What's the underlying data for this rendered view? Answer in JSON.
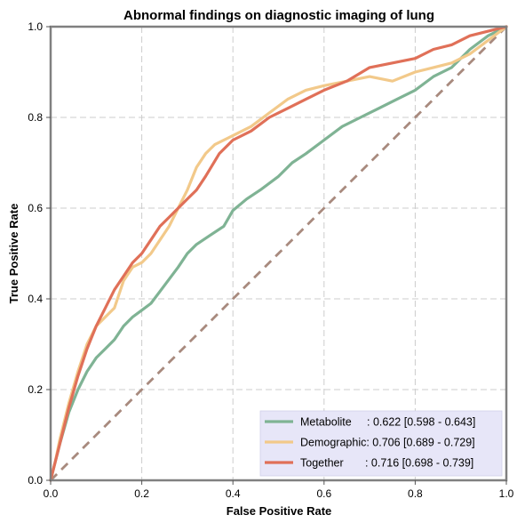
{
  "chart_data": {
    "type": "line",
    "title": "Abnormal findings on diagnostic imaging of lung",
    "xlabel": "False Positive Rate",
    "ylabel": "True Positive Rate",
    "xlim": [
      0,
      1
    ],
    "ylim": [
      0,
      1
    ],
    "grid": true,
    "legend_position": "bottom-right",
    "x_ticks": [
      "0.0",
      "0.2",
      "0.4",
      "0.6",
      "0.8",
      "1.0"
    ],
    "y_ticks": [
      "0.0",
      "0.2",
      "0.4",
      "0.6",
      "0.8",
      "1.0"
    ],
    "series": [
      {
        "name": "Metabolite",
        "legend_label": "Metabolite     : 0.622 [0.598 - 0.643]",
        "color": "#7fb394",
        "x": [
          0.0,
          0.01,
          0.02,
          0.04,
          0.06,
          0.08,
          0.1,
          0.12,
          0.14,
          0.16,
          0.18,
          0.2,
          0.22,
          0.25,
          0.28,
          0.3,
          0.32,
          0.35,
          0.38,
          0.4,
          0.43,
          0.46,
          0.5,
          0.53,
          0.56,
          0.6,
          0.64,
          0.68,
          0.72,
          0.76,
          0.8,
          0.84,
          0.88,
          0.92,
          0.96,
          1.0
        ],
        "y": [
          0.0,
          0.04,
          0.08,
          0.15,
          0.2,
          0.24,
          0.27,
          0.29,
          0.31,
          0.34,
          0.36,
          0.375,
          0.39,
          0.43,
          0.47,
          0.5,
          0.52,
          0.54,
          0.56,
          0.595,
          0.62,
          0.64,
          0.67,
          0.7,
          0.72,
          0.75,
          0.78,
          0.8,
          0.82,
          0.84,
          0.86,
          0.89,
          0.91,
          0.95,
          0.98,
          1.0
        ]
      },
      {
        "name": "Demographic",
        "legend_label": "Demographic: 0.706 [0.689 - 0.729]",
        "color": "#f2c98a",
        "x": [
          0.0,
          0.01,
          0.02,
          0.04,
          0.06,
          0.08,
          0.1,
          0.12,
          0.14,
          0.16,
          0.18,
          0.2,
          0.22,
          0.24,
          0.26,
          0.28,
          0.3,
          0.32,
          0.34,
          0.36,
          0.4,
          0.44,
          0.48,
          0.52,
          0.56,
          0.6,
          0.65,
          0.7,
          0.75,
          0.8,
          0.84,
          0.88,
          0.92,
          0.96,
          1.0
        ],
        "y": [
          0.0,
          0.04,
          0.09,
          0.17,
          0.24,
          0.3,
          0.34,
          0.36,
          0.38,
          0.44,
          0.47,
          0.48,
          0.5,
          0.53,
          0.56,
          0.6,
          0.64,
          0.69,
          0.72,
          0.74,
          0.76,
          0.78,
          0.81,
          0.84,
          0.86,
          0.87,
          0.88,
          0.89,
          0.88,
          0.9,
          0.91,
          0.92,
          0.94,
          0.97,
          1.0
        ]
      },
      {
        "name": "Together",
        "legend_label": "Together       : 0.716 [0.698 - 0.739]",
        "color": "#e07058",
        "x": [
          0.0,
          0.01,
          0.02,
          0.04,
          0.06,
          0.08,
          0.1,
          0.12,
          0.14,
          0.16,
          0.18,
          0.2,
          0.22,
          0.24,
          0.26,
          0.28,
          0.3,
          0.32,
          0.34,
          0.37,
          0.4,
          0.44,
          0.48,
          0.52,
          0.56,
          0.6,
          0.65,
          0.7,
          0.75,
          0.8,
          0.84,
          0.88,
          0.92,
          0.96,
          1.0
        ],
        "y": [
          0.0,
          0.04,
          0.08,
          0.16,
          0.23,
          0.29,
          0.34,
          0.38,
          0.42,
          0.45,
          0.48,
          0.5,
          0.53,
          0.56,
          0.58,
          0.6,
          0.62,
          0.64,
          0.67,
          0.72,
          0.75,
          0.77,
          0.8,
          0.82,
          0.84,
          0.86,
          0.88,
          0.91,
          0.92,
          0.93,
          0.95,
          0.96,
          0.98,
          0.99,
          1.0
        ]
      }
    ],
    "reference_line": {
      "x": [
        0,
        1
      ],
      "y": [
        0,
        1
      ],
      "color": "#a88a7e",
      "style": "dashed"
    }
  }
}
